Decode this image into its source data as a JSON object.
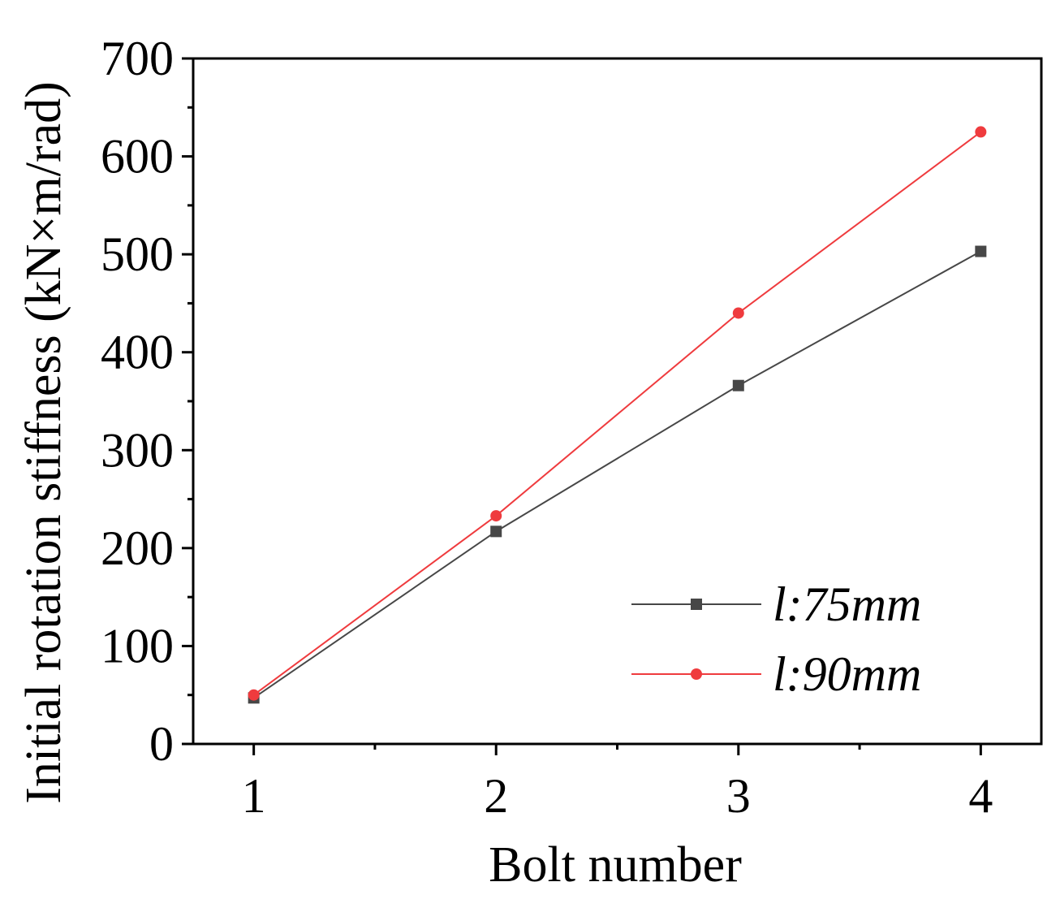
{
  "chart_data": {
    "type": "line",
    "xlabel": "Bolt number",
    "ylabel": "Initial rotation stiffness (kN×m/rad)",
    "x": [
      1,
      2,
      3,
      4
    ],
    "xticks": [
      "1",
      "2",
      "3",
      "4"
    ],
    "xlim": [
      0.75,
      4.25
    ],
    "ylim": [
      0,
      700
    ],
    "yticks": [
      "0",
      "100",
      "200",
      "300",
      "400",
      "500",
      "600",
      "700"
    ],
    "ytick_values": [
      0,
      100,
      200,
      300,
      400,
      500,
      600,
      700
    ],
    "yminor_step": 50,
    "grid": false,
    "legend_position": "bottom-right",
    "series": [
      {
        "name": "l:75mm",
        "values": [
          47,
          217,
          366,
          503
        ],
        "color": "#474747",
        "marker": "square"
      },
      {
        "name": "l:90mm",
        "values": [
          50,
          233,
          440,
          625
        ],
        "color": "#ef3b3e",
        "marker": "circle"
      }
    ]
  }
}
